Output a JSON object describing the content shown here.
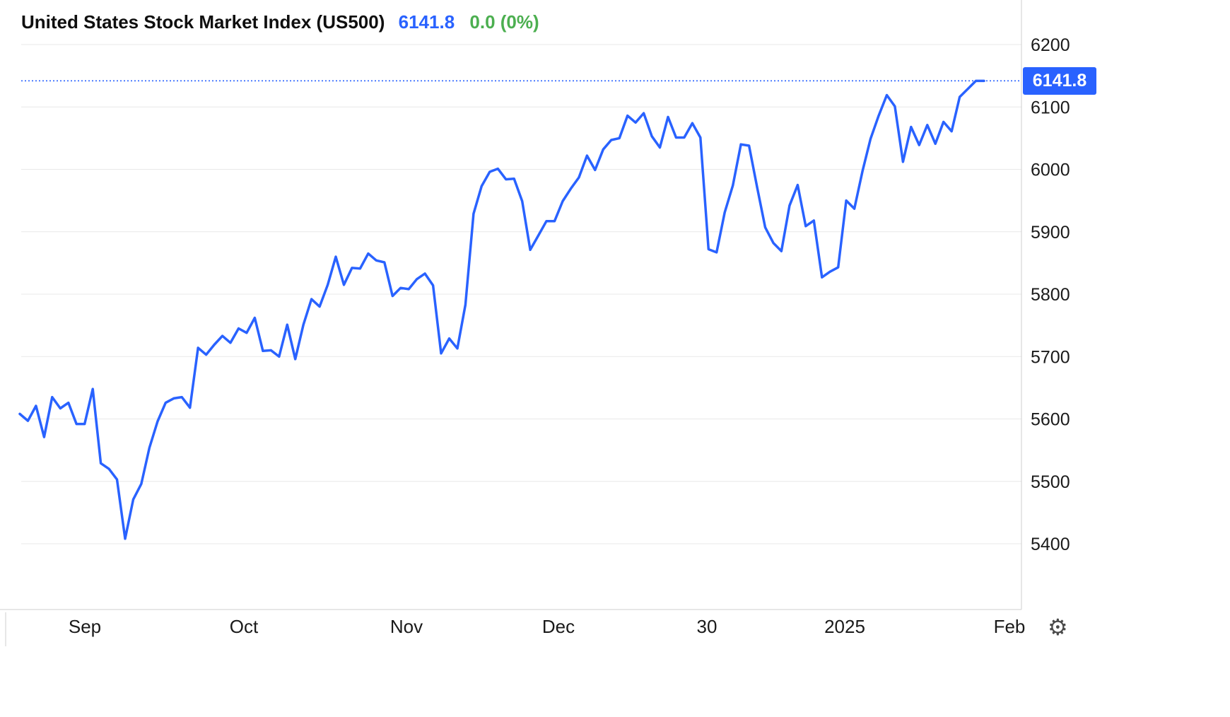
{
  "header": {
    "title": "United States Stock Market Index (US500)",
    "price": "6141.8",
    "change": "0.0 (0%)"
  },
  "price_label": "6141.8",
  "icons": {
    "settings": "gear-icon"
  },
  "colors": {
    "line": "#2962FF",
    "price_label_bg": "#2962FF",
    "price_text": "#2962FF",
    "change_text": "#4CAF50",
    "grid": "#e8e8e8",
    "axis_line": "#cfcfcf",
    "axis_text": "#1a1a1a"
  },
  "chart_data": {
    "type": "line",
    "title": "United States Stock Market Index (US500)",
    "series_name": "US500",
    "last_value": 6141.8,
    "ylim": [
      5330,
      6270
    ],
    "grid": "horizontal",
    "legend": "none",
    "yticks": [
      6200,
      6100,
      6000,
      5900,
      5800,
      5700,
      5600,
      5500,
      5400
    ],
    "xticks": [
      {
        "label": "Sep",
        "pos": 0.083
      },
      {
        "label": "Oct",
        "pos": 0.239
      },
      {
        "label": "Nov",
        "pos": 0.398
      },
      {
        "label": "Dec",
        "pos": 0.547
      },
      {
        "label": "30",
        "pos": 0.692
      },
      {
        "label": "2025",
        "pos": 0.827
      },
      {
        "label": "Feb",
        "pos": 0.988
      }
    ],
    "values": [
      5608,
      5597,
      5621,
      5571,
      5635,
      5617,
      5626,
      5592,
      5592,
      5648,
      5529,
      5520,
      5503,
      5408,
      5471,
      5496,
      5554,
      5596,
      5626,
      5633,
      5635,
      5618,
      5714,
      5703,
      5719,
      5733,
      5722,
      5745,
      5738,
      5762,
      5709,
      5710,
      5700,
      5751,
      5696,
      5751,
      5792,
      5780,
      5815,
      5860,
      5815,
      5842,
      5841,
      5865,
      5854,
      5851,
      5797,
      5810,
      5808,
      5824,
      5833,
      5814,
      5705,
      5729,
      5713,
      5783,
      5929,
      5973,
      5996,
      6001,
      5984,
      5985,
      5949,
      5871,
      5894,
      5917,
      5917,
      5949,
      5969,
      5987,
      6022,
      5999,
      6032,
      6047,
      6050,
      6086,
      6075,
      6090,
      6053,
      6035,
      6084,
      6051,
      6051,
      6074,
      6051,
      5872,
      5867,
      5931,
      5974,
      6040,
      6038,
      5971,
      5907,
      5882,
      5869,
      5942,
      5975,
      5909,
      5918,
      5827,
      5836,
      5843,
      5950,
      5937,
      5997,
      6049,
      6086,
      6119,
      6101,
      6012,
      6068,
      6039,
      6071,
      6041,
      6076,
      6061,
      6116,
      6129,
      6141.8,
      6141.8
    ]
  }
}
